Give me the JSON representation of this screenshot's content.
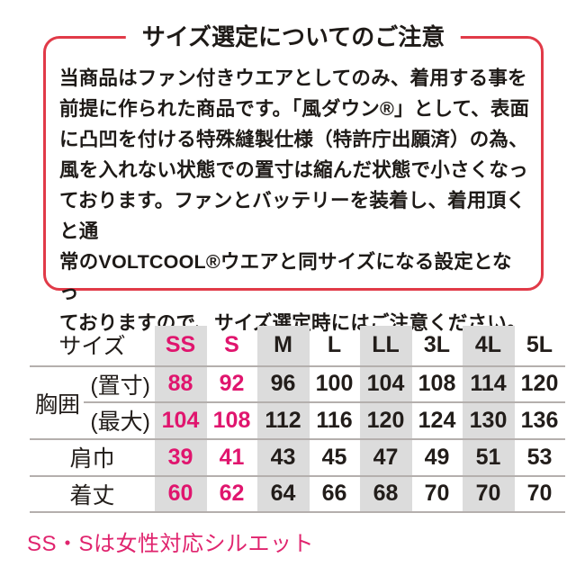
{
  "notice": {
    "title": "サイズ選定についてのご注意",
    "body": "当商品はファン付きウエアとしてのみ、着用する事を\n前提に作られた商品です。「風ダウン®」として、表面\nに凸凹を付ける特殊縫製仕様（特許庁出願済）の為、\n風を入れない状態での置寸は縮んだ状態で小さくなっ\nております。ファンとバッテリーを装着し、着用頂くと通\n常のVOLTCOOL®ウエアと同サイズになる設定となっ\nておりますので、サイズ選定時にはご注意ください。"
  },
  "table": {
    "header_label": "サイズ",
    "sizes": [
      "SS",
      "S",
      "M",
      "L",
      "LL",
      "3L",
      "4L",
      "5L"
    ],
    "chest_label": "胸囲",
    "rows": [
      {
        "label": "(置寸)",
        "group": "胸囲",
        "values": [
          "88",
          "92",
          "96",
          "100",
          "104",
          "108",
          "114",
          "120"
        ]
      },
      {
        "label": "(最大)",
        "group": "胸囲",
        "values": [
          "104",
          "108",
          "112",
          "116",
          "120",
          "124",
          "130",
          "136"
        ]
      },
      {
        "label": "肩巾",
        "values": [
          "39",
          "41",
          "43",
          "45",
          "47",
          "49",
          "51",
          "53"
        ]
      },
      {
        "label": "着丈",
        "values": [
          "60",
          "62",
          "64",
          "66",
          "68",
          "70",
          "70",
          "70"
        ]
      }
    ],
    "highlighted_sizes": [
      "SS",
      "S"
    ],
    "striped_columns": [
      "SS",
      "M",
      "LL",
      "4L"
    ]
  },
  "footer": {
    "note": "SS・Sは女性対応シルエット"
  },
  "colors": {
    "accent_pink": "#e0156e",
    "border_red": "#e13a48",
    "stripe_gray": "#dcdcdc",
    "text_black": "#1e1a17"
  }
}
